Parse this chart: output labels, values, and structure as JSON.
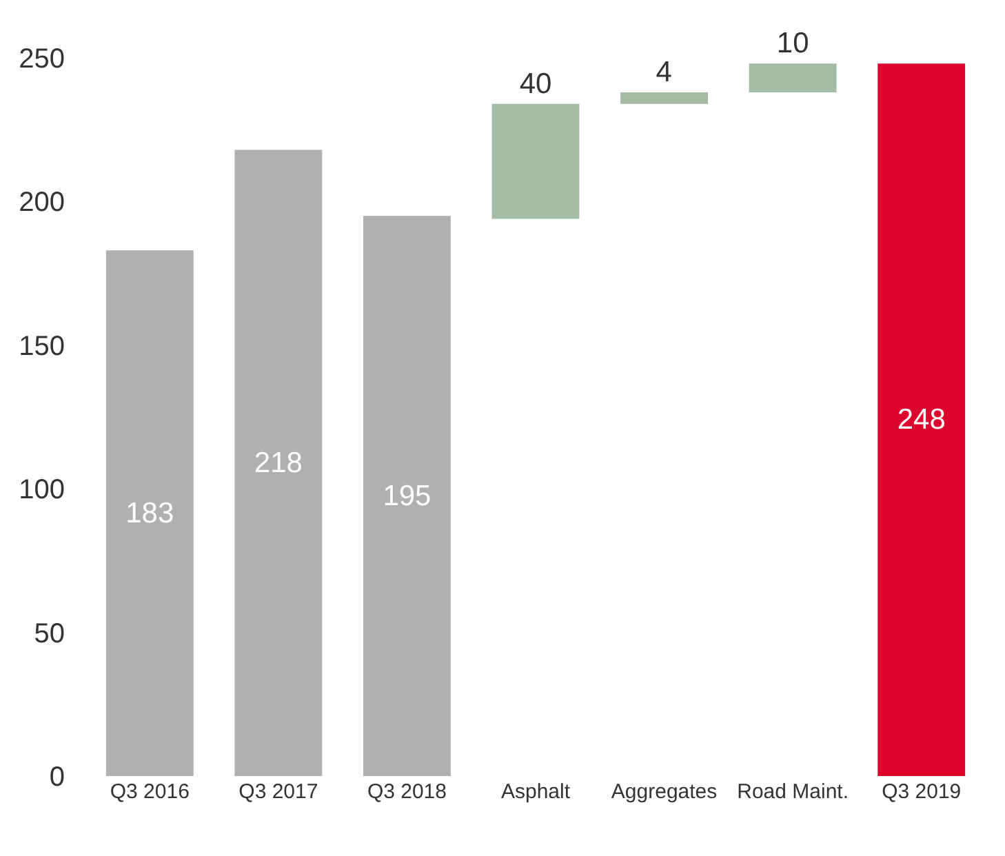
{
  "chart_data": {
    "type": "bar",
    "categories": [
      "Q3 2016",
      "Q3 2017",
      "Q3 2018",
      "Asphalt",
      "Aggregates",
      "Road Maint.",
      "Q3 2019"
    ],
    "values": [
      183,
      218,
      195,
      40,
      4,
      10,
      248
    ],
    "base": [
      null,
      null,
      null,
      194,
      234,
      238,
      null
    ],
    "colors": [
      "#b0b0b0",
      "#b0b0b0",
      "#b0b0b0",
      "#a3bca3",
      "#a3bca3",
      "#a3bca3",
      "#dc052d"
    ],
    "ylim": [
      0,
      250
    ],
    "yticks": [
      0,
      50,
      100,
      150,
      200,
      250
    ],
    "data_labels": true,
    "grid": false,
    "legend": false
  }
}
